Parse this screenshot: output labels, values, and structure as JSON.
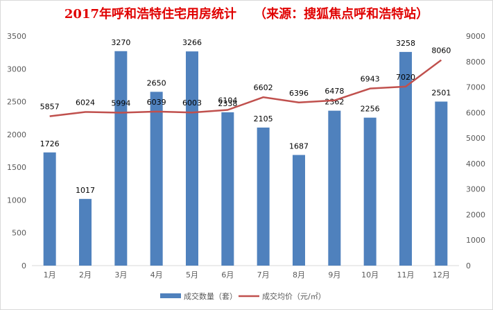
{
  "chart_data": {
    "type": "bar",
    "title": "2017年呼和浩特住宅用房统计    （来源：搜狐焦点呼和浩特站）",
    "categories": [
      "1月",
      "2月",
      "3月",
      "4月",
      "5月",
      "6月",
      "7月",
      "8月",
      "9月",
      "10月",
      "11月",
      "12月"
    ],
    "series": [
      {
        "name": "成交数量（套）",
        "type": "bar",
        "axis": "left",
        "color": "#4f81bd",
        "values": [
          1726,
          1017,
          3270,
          2650,
          3266,
          2338,
          2105,
          1687,
          2362,
          2256,
          3258,
          2501
        ]
      },
      {
        "name": "成交均价（元/㎡）",
        "type": "line",
        "axis": "right",
        "color": "#c0504d",
        "values": [
          5857,
          6024,
          5994,
          6039,
          6003,
          6104,
          6602,
          6396,
          6478,
          6943,
          7020,
          8060
        ]
      }
    ],
    "y_left": {
      "min": 0,
      "max": 3500,
      "ticks": [
        "0",
        "500",
        "1000",
        "1500",
        "2000",
        "2500",
        "3000",
        "3500"
      ]
    },
    "y_right": {
      "min": 0,
      "max": 9000,
      "ticks": [
        "0",
        "1000",
        "2000",
        "3000",
        "4000",
        "5000",
        "6000",
        "7000",
        "8000",
        "9000"
      ]
    },
    "grid": false,
    "legend": "bottom"
  }
}
